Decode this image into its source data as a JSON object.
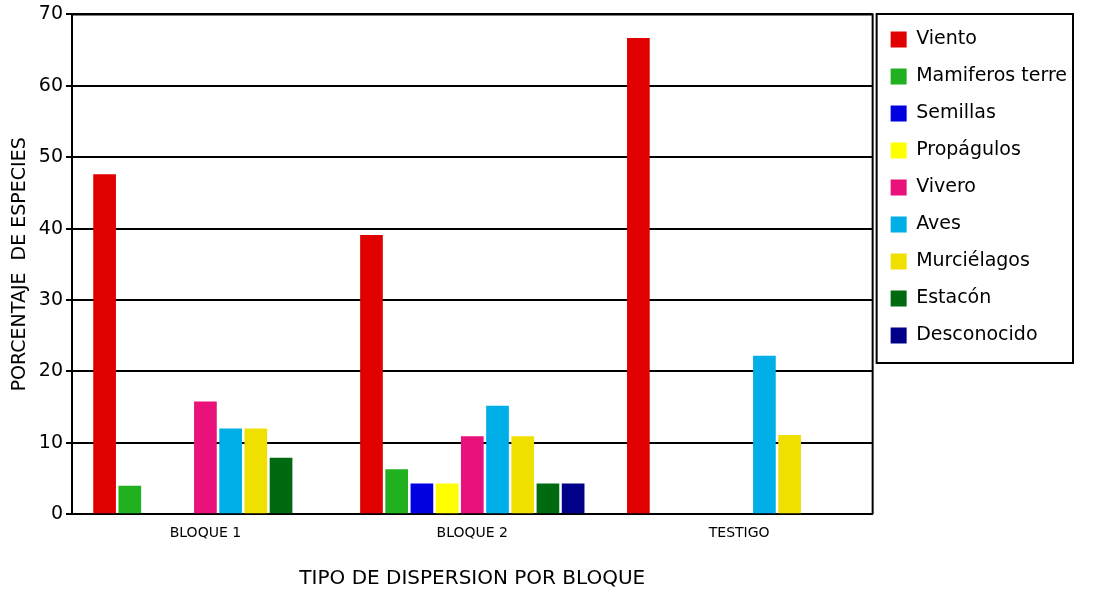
{
  "chart_data": {
    "type": "bar",
    "xlabel": "TIPO DE DISPERSION POR BLOQUE",
    "ylabel": "PORCENTAJE  DE ESPECIES",
    "categories": [
      "BLOQUE 1",
      "BLOQUE 2",
      "TESTIGO"
    ],
    "series": [
      {
        "name": "Viento",
        "color": "#e00000",
        "values": [
          47.6,
          39.1,
          66.7
        ]
      },
      {
        "name": "Mamiferos terre",
        "color": "#20b020",
        "values": [
          4,
          6.3,
          0
        ]
      },
      {
        "name": "Semillas",
        "color": "#0000e0",
        "values": [
          0,
          4.3,
          0
        ]
      },
      {
        "name": "Propágulos",
        "color": "#ffff00",
        "values": [
          0,
          4.3,
          0
        ]
      },
      {
        "name": "Vivero",
        "color": "#e8127a",
        "values": [
          15.8,
          10.9,
          0
        ]
      },
      {
        "name": "Aves",
        "color": "#00aee8",
        "values": [
          12,
          15.2,
          22.2
        ]
      },
      {
        "name": "Murciélagos",
        "color": "#f0e000",
        "values": [
          12,
          10.9,
          11.1
        ]
      },
      {
        "name": "Estacón",
        "color": "#006a10",
        "values": [
          7.9,
          4.3,
          0
        ]
      },
      {
        "name": "Desconocido",
        "color": "#000088",
        "values": [
          0,
          4.3,
          0
        ]
      }
    ],
    "ylim": [
      0,
      70
    ],
    "yticks": [
      0,
      10,
      20,
      30,
      40,
      50,
      60,
      70
    ],
    "grid": "y",
    "legend": "right"
  }
}
